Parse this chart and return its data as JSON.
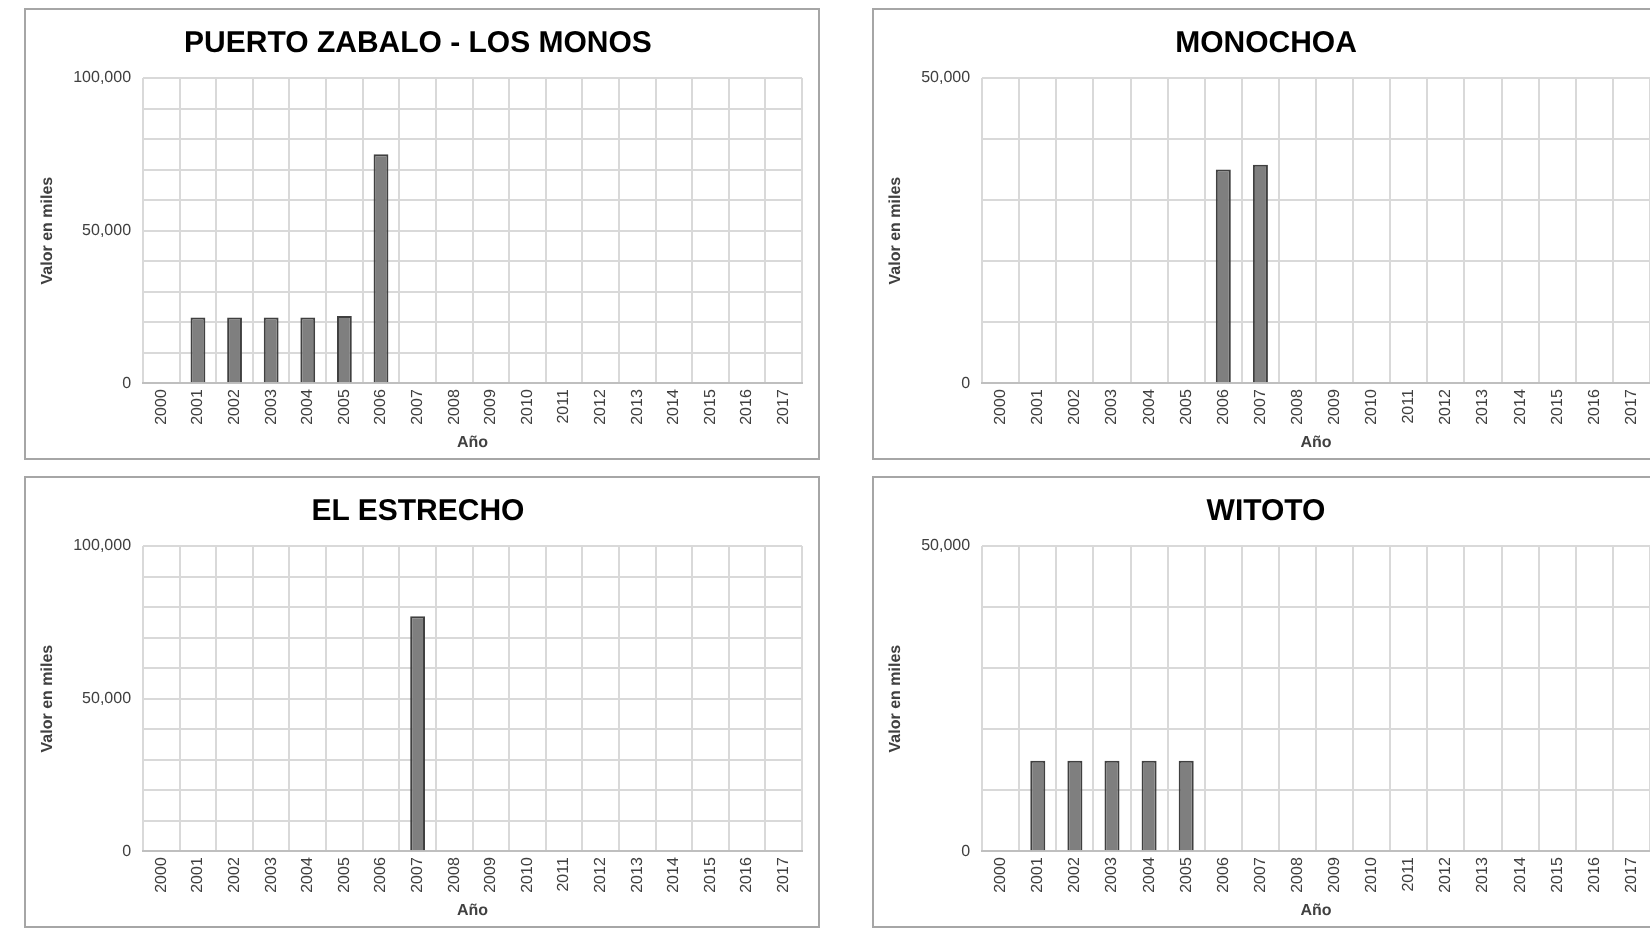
{
  "chart_data": [
    {
      "type": "bar",
      "title": "PUERTO ZABALO - LOS MONOS",
      "xlabel": "Año",
      "ylabel": "Valor en miles",
      "categories": [
        "2000",
        "2001",
        "2002",
        "2003",
        "2004",
        "2005",
        "2006",
        "2007",
        "2008",
        "2009",
        "2010",
        "2011",
        "2012",
        "2013",
        "2014",
        "2015",
        "2016",
        "2017"
      ],
      "values": [
        0,
        21500,
        21500,
        21500,
        21500,
        22000,
        75000,
        0,
        0,
        0,
        0,
        0,
        0,
        0,
        0,
        0,
        0,
        0
      ],
      "color": "#7f7f7f",
      "ylim": [
        0,
        100000
      ],
      "yticks": [
        {
          "value": 0,
          "label": "0"
        },
        {
          "value": 10000,
          "label": null
        },
        {
          "value": 20000,
          "label": null
        },
        {
          "value": 30000,
          "label": null
        },
        {
          "value": 40000,
          "label": null
        },
        {
          "value": 50000,
          "label": "50,000"
        },
        {
          "value": 60000,
          "label": null
        },
        {
          "value": 70000,
          "label": null
        },
        {
          "value": 80000,
          "label": null
        },
        {
          "value": 90000,
          "label": null
        },
        {
          "value": 100000,
          "label": "100,000"
        }
      ],
      "grid": true
    },
    {
      "type": "bar",
      "title": "MONOCHOA",
      "xlabel": "Año",
      "ylabel": "Valor en miles",
      "categories": [
        "2000",
        "2001",
        "2002",
        "2003",
        "2004",
        "2005",
        "2006",
        "2007",
        "2008",
        "2009",
        "2010",
        "2011",
        "2012",
        "2013",
        "2014",
        "2015",
        "2016",
        "2017"
      ],
      "values": [
        0,
        0,
        0,
        0,
        0,
        0,
        35000,
        35800,
        0,
        0,
        0,
        0,
        0,
        0,
        0,
        0,
        0,
        0
      ],
      "color": "#7f7f7f",
      "ylim": [
        0,
        50000
      ],
      "yticks": [
        {
          "value": 0,
          "label": "0"
        },
        {
          "value": 10000,
          "label": null
        },
        {
          "value": 20000,
          "label": null
        },
        {
          "value": 30000,
          "label": null
        },
        {
          "value": 40000,
          "label": null
        },
        {
          "value": 50000,
          "label": "50,000"
        }
      ],
      "grid": true
    },
    {
      "type": "bar",
      "title": "EL ESTRECHO",
      "xlabel": "Año",
      "ylabel": "Valor en miles",
      "categories": [
        "2000",
        "2001",
        "2002",
        "2003",
        "2004",
        "2005",
        "2006",
        "2007",
        "2008",
        "2009",
        "2010",
        "2011",
        "2012",
        "2013",
        "2014",
        "2015",
        "2016",
        "2017"
      ],
      "values": [
        0,
        0,
        0,
        0,
        0,
        0,
        0,
        77000,
        0,
        0,
        0,
        0,
        0,
        0,
        0,
        0,
        0,
        0
      ],
      "color": "#7f7f7f",
      "ylim": [
        0,
        100000
      ],
      "yticks": [
        {
          "value": 0,
          "label": "0"
        },
        {
          "value": 10000,
          "label": null
        },
        {
          "value": 20000,
          "label": null
        },
        {
          "value": 30000,
          "label": null
        },
        {
          "value": 40000,
          "label": null
        },
        {
          "value": 50000,
          "label": "50,000"
        },
        {
          "value": 60000,
          "label": null
        },
        {
          "value": 70000,
          "label": null
        },
        {
          "value": 80000,
          "label": null
        },
        {
          "value": 90000,
          "label": null
        },
        {
          "value": 100000,
          "label": "100,000"
        }
      ],
      "grid": true
    },
    {
      "type": "bar",
      "title": "WITOTO",
      "xlabel": "Año",
      "ylabel": "Valor en miles",
      "categories": [
        "2000",
        "2001",
        "2002",
        "2003",
        "2004",
        "2005",
        "2006",
        "2007",
        "2008",
        "2009",
        "2010",
        "2011",
        "2012",
        "2013",
        "2014",
        "2015",
        "2016",
        "2017"
      ],
      "values": [
        0,
        14800,
        14800,
        14800,
        14800,
        14800,
        0,
        0,
        0,
        0,
        0,
        0,
        0,
        0,
        0,
        0,
        0,
        0
      ],
      "color": "#7f7f7f",
      "ylim": [
        0,
        50000
      ],
      "yticks": [
        {
          "value": 0,
          "label": "0"
        },
        {
          "value": 10000,
          "label": null
        },
        {
          "value": 20000,
          "label": null
        },
        {
          "value": 30000,
          "label": null
        },
        {
          "value": 40000,
          "label": null
        },
        {
          "value": 50000,
          "label": "50,000"
        }
      ],
      "grid": true
    }
  ]
}
